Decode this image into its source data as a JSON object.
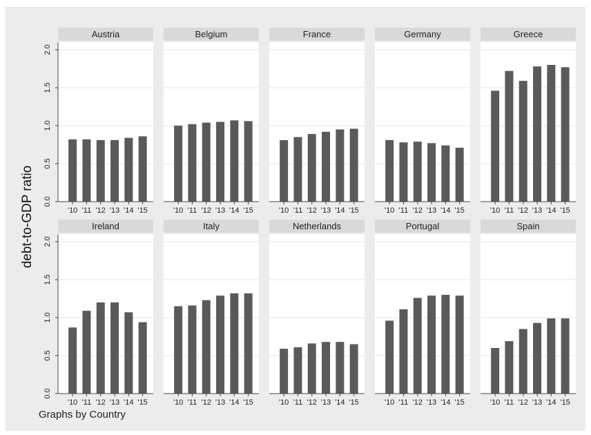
{
  "chart_data": {
    "type": "bar",
    "layout": "small-multiples",
    "ylabel": "debt-to-GDP ratio",
    "note": "Graphs by Country",
    "ylim": [
      0,
      2.1
    ],
    "yticks": [
      "0.0",
      "0.5",
      "1.0",
      "1.5",
      "2.0"
    ],
    "ytick_values": [
      0,
      0.5,
      1.0,
      1.5,
      2.0
    ],
    "categories": [
      "'10",
      "'11",
      "'12",
      "'13",
      "'14",
      "'15"
    ],
    "grid": true,
    "colors": {
      "bar": "#5a5a5a",
      "panel_header": "#d9d9d9",
      "plot_bg": "#ffffff",
      "outer_bg": "#ececec",
      "grid": "#e4e4e4"
    },
    "panels": [
      {
        "name": "Austria",
        "values": [
          0.82,
          0.82,
          0.81,
          0.81,
          0.84,
          0.86
        ]
      },
      {
        "name": "Belgium",
        "values": [
          1.0,
          1.02,
          1.04,
          1.05,
          1.07,
          1.06
        ]
      },
      {
        "name": "France",
        "values": [
          0.81,
          0.85,
          0.89,
          0.92,
          0.95,
          0.96
        ]
      },
      {
        "name": "Germany",
        "values": [
          0.81,
          0.78,
          0.79,
          0.77,
          0.74,
          0.71
        ]
      },
      {
        "name": "Greece",
        "values": [
          1.46,
          1.72,
          1.59,
          1.78,
          1.8,
          1.77
        ]
      },
      {
        "name": "Ireland",
        "values": [
          0.87,
          1.09,
          1.2,
          1.2,
          1.07,
          0.94
        ]
      },
      {
        "name": "Italy",
        "values": [
          1.15,
          1.16,
          1.23,
          1.29,
          1.32,
          1.32
        ]
      },
      {
        "name": "Netherlands",
        "values": [
          0.59,
          0.61,
          0.66,
          0.68,
          0.68,
          0.65
        ]
      },
      {
        "name": "Portugal",
        "values": [
          0.96,
          1.11,
          1.26,
          1.29,
          1.3,
          1.29
        ]
      },
      {
        "name": "Spain",
        "values": [
          0.6,
          0.69,
          0.85,
          0.93,
          0.99,
          0.99
        ]
      }
    ]
  }
}
